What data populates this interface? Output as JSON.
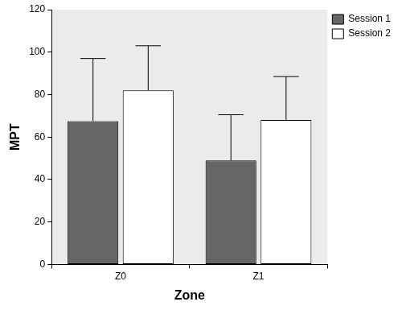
{
  "chart_data": {
    "type": "bar",
    "categories": [
      "Z0",
      "Z1"
    ],
    "x_label": "Zone",
    "y_label": "MPT",
    "series": [
      {
        "name": "Session 1",
        "color": "#666666",
        "values": [
          67.5,
          49
        ],
        "errors": [
          29.5,
          21.5
        ]
      },
      {
        "name": "Session 2",
        "color": "#ffffff",
        "values": [
          82,
          68
        ],
        "errors": [
          21,
          20.5
        ]
      }
    ],
    "ylim": [
      0,
      120
    ],
    "yticks": [
      0,
      20,
      40,
      60,
      80,
      100,
      120
    ],
    "grid": false,
    "legend": "right"
  }
}
